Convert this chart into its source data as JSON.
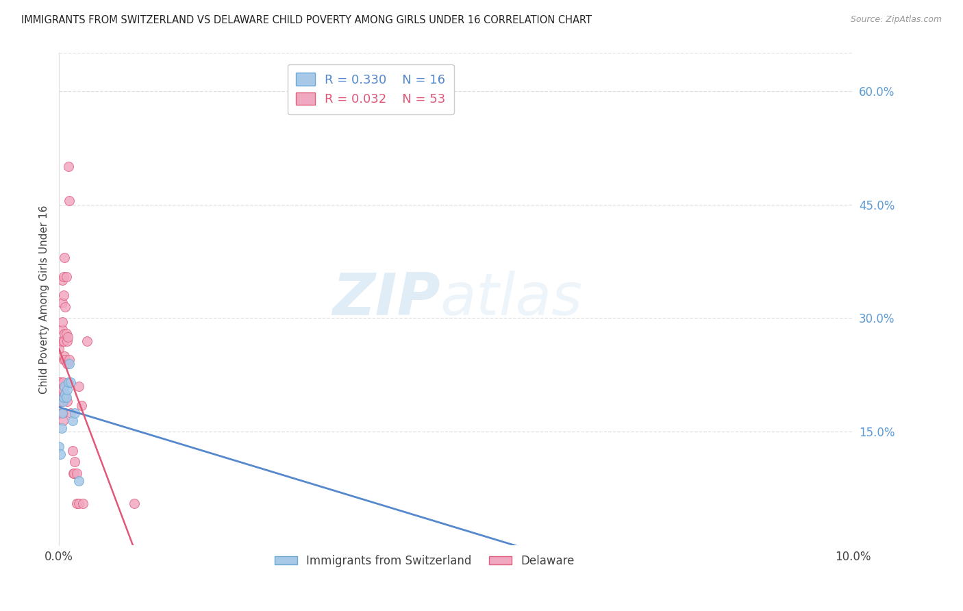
{
  "title": "IMMIGRANTS FROM SWITZERLAND VS DELAWARE CHILD POVERTY AMONG GIRLS UNDER 16 CORRELATION CHART",
  "source": "Source: ZipAtlas.com",
  "ylabel": "Child Poverty Among Girls Under 16",
  "xlim": [
    0.0,
    0.1
  ],
  "ylim": [
    0.0,
    0.65
  ],
  "xticks": [
    0.0,
    0.02,
    0.04,
    0.06,
    0.08,
    0.1
  ],
  "xticklabels": [
    "0.0%",
    "",
    "",
    "",
    "",
    "10.0%"
  ],
  "yticks_right": [
    0.15,
    0.3,
    0.45,
    0.6
  ],
  "yticklabels_right": [
    "15.0%",
    "30.0%",
    "45.0%",
    "60.0%"
  ],
  "grid_color": "#e0e0e0",
  "background_color": "#ffffff",
  "watermark_text": "ZIP",
  "watermark_text2": "atlas",
  "legend_r1": "R = 0.330",
  "legend_n1": "N = 16",
  "legend_r2": "R = 0.032",
  "legend_n2": "N = 53",
  "series1_color": "#a8c8e8",
  "series1_edge": "#6aaad4",
  "series2_color": "#f0a8c0",
  "series2_edge": "#e06080",
  "trend1_color": "#5588cc",
  "trend2_color": "#e05878",
  "trend1_dash": "solid",
  "trend2_dash": "solid",
  "series1_x": [
    0.0,
    0.0002,
    0.0003,
    0.0004,
    0.0005,
    0.0006,
    0.0007,
    0.0008,
    0.0009,
    0.001,
    0.0012,
    0.0013,
    0.0015,
    0.0017,
    0.002,
    0.0025
  ],
  "series1_y": [
    0.13,
    0.12,
    0.155,
    0.175,
    0.19,
    0.195,
    0.21,
    0.2,
    0.195,
    0.205,
    0.215,
    0.24,
    0.215,
    0.165,
    0.175,
    0.085
  ],
  "series2_x": [
    0.0,
    0.0001,
    0.0001,
    0.0002,
    0.0002,
    0.0002,
    0.0003,
    0.0003,
    0.0003,
    0.0003,
    0.0004,
    0.0004,
    0.0004,
    0.0004,
    0.0004,
    0.0005,
    0.0005,
    0.0005,
    0.0005,
    0.0005,
    0.0006,
    0.0006,
    0.0006,
    0.0006,
    0.0006,
    0.0007,
    0.0007,
    0.0007,
    0.0008,
    0.0008,
    0.0008,
    0.0009,
    0.0009,
    0.001,
    0.001,
    0.001,
    0.0011,
    0.0012,
    0.0013,
    0.0013,
    0.0015,
    0.0017,
    0.0018,
    0.0019,
    0.002,
    0.0022,
    0.0022,
    0.0025,
    0.0025,
    0.0028,
    0.003,
    0.0035,
    0.0095
  ],
  "series2_y": [
    0.26,
    0.215,
    0.2,
    0.19,
    0.215,
    0.2,
    0.205,
    0.195,
    0.175,
    0.27,
    0.35,
    0.285,
    0.32,
    0.295,
    0.2,
    0.215,
    0.205,
    0.175,
    0.165,
    0.195,
    0.33,
    0.27,
    0.355,
    0.27,
    0.245,
    0.38,
    0.28,
    0.25,
    0.315,
    0.245,
    0.195,
    0.355,
    0.28,
    0.27,
    0.24,
    0.19,
    0.275,
    0.5,
    0.455,
    0.245,
    0.175,
    0.125,
    0.095,
    0.095,
    0.11,
    0.095,
    0.055,
    0.055,
    0.21,
    0.185,
    0.055,
    0.27,
    0.055
  ],
  "marker_size": 100
}
